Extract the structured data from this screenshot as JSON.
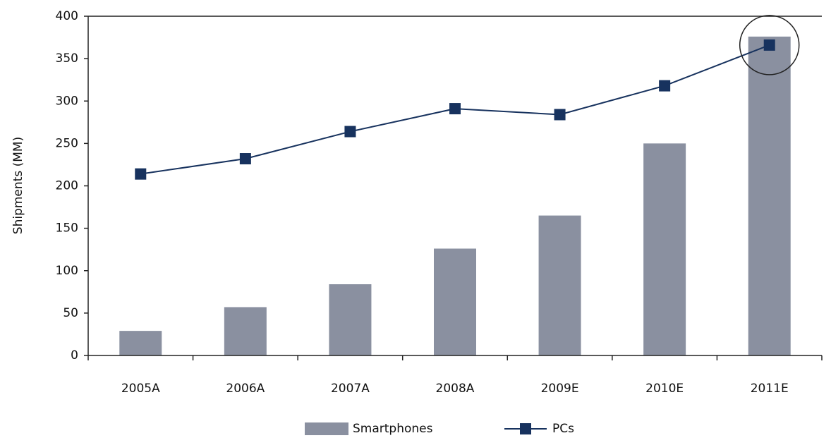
{
  "chart_data": {
    "type": "bar_line",
    "y_label": "Shipments (MM)",
    "categories": [
      "2005A",
      "2006A",
      "2007A",
      "2008A",
      "2009E",
      "2010E",
      "2011E"
    ],
    "series": [
      {
        "name": "Smartphones",
        "type": "bar",
        "color": "#8a90a0",
        "values": [
          29,
          57,
          84,
          126,
          165,
          250,
          376
        ]
      },
      {
        "name": "PCs",
        "type": "line",
        "color": "#17325e",
        "values": [
          214,
          232,
          264,
          291,
          284,
          318,
          366
        ]
      }
    ],
    "ylim": [
      0,
      400
    ],
    "yticks": [
      0,
      50,
      100,
      150,
      200,
      250,
      300,
      350,
      400
    ]
  }
}
